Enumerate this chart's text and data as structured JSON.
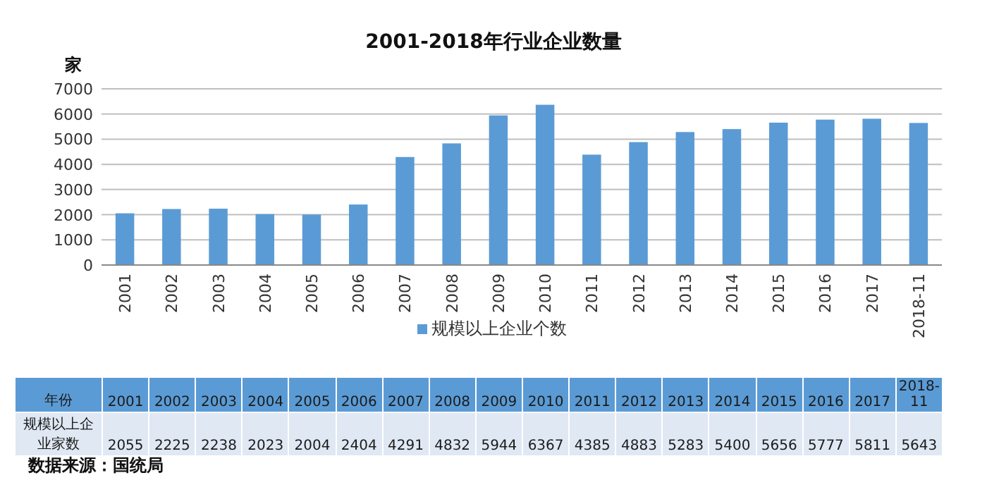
{
  "chart_data": {
    "type": "bar",
    "title": "2001-2018年行业企业数量",
    "ylabel": "家",
    "categories": [
      "2001",
      "2002",
      "2003",
      "2004",
      "2005",
      "2006",
      "2007",
      "2008",
      "2009",
      "2010",
      "2011",
      "2012",
      "2013",
      "2014",
      "2015",
      "2016",
      "2017",
      "2018-11"
    ],
    "series": [
      {
        "name": "规模以上企业个数",
        "color": "#5b9bd5",
        "values": [
          2055,
          2225,
          2238,
          2023,
          2004,
          2404,
          4291,
          4832,
          5944,
          6367,
          4385,
          4883,
          5283,
          5400,
          5656,
          5777,
          5811,
          5643
        ],
        "value_labels": [
          "2055",
          "2225",
          "2238",
          "2023",
          "2004",
          "2404",
          "4291",
          "4832",
          "5944",
          "6367",
          "4385",
          "4883",
          "5283",
          "5400",
          "5656",
          "5777",
          "5811",
          "5643"
        ]
      }
    ],
    "ylim": [
      0,
      7000
    ],
    "yticks": [
      0,
      1000,
      2000,
      3000,
      4000,
      5000,
      6000,
      7000
    ],
    "grid": "y",
    "legend": "bottom",
    "annotations": [
      "年份",
      "规模以上企业家数",
      "数据来源：国统局"
    ]
  }
}
